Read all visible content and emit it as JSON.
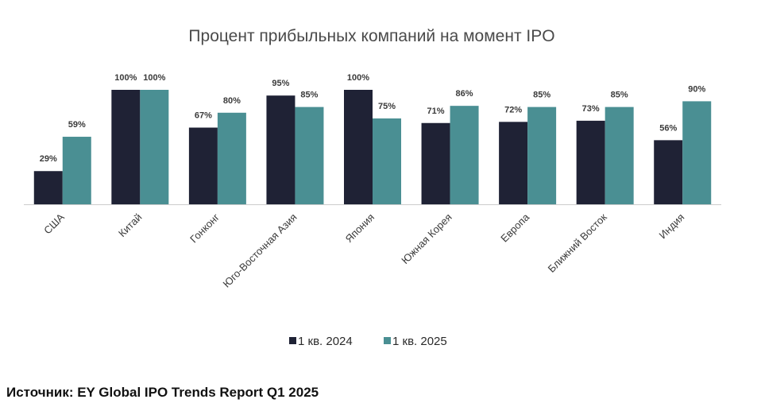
{
  "source": "Источник: EY Global IPO Trends Report Q1 2025",
  "colors": {
    "series_1": "#1f2235",
    "series_2": "#4a8f93",
    "axis": "#cccccc",
    "title": "#4a4a4a"
  },
  "chart_data": {
    "type": "bar",
    "title": "Процент прибыльных компаний на момент IPO",
    "xlabel": "",
    "ylabel": "",
    "ylim": [
      0,
      100
    ],
    "grid": false,
    "legend_position": "bottom",
    "value_format": "percent",
    "categories": [
      "США",
      "Китай",
      "Гонконг",
      "Юго-Восточная Азия",
      "Япония",
      "Южная Корея",
      "Европа",
      "Ближний Восток",
      "Индия"
    ],
    "series": [
      {
        "name": "1 кв. 2024",
        "values": [
          29,
          100,
          67,
          95,
          100,
          71,
          72,
          73,
          56
        ]
      },
      {
        "name": "1 кв. 2025",
        "values": [
          59,
          100,
          80,
          85,
          75,
          86,
          85,
          85,
          90
        ]
      }
    ]
  }
}
